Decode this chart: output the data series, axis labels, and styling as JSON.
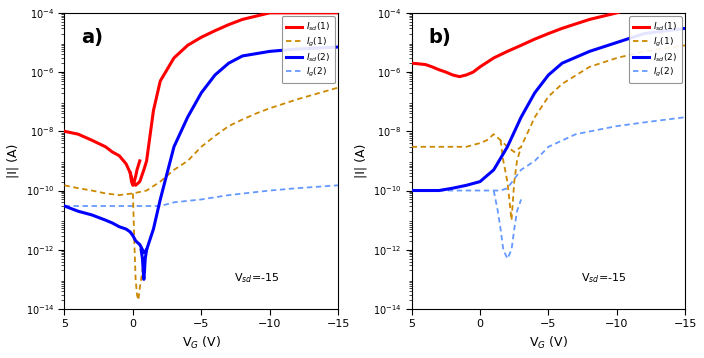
{
  "xlim": [
    5,
    -15
  ],
  "ylim": [
    1e-14,
    0.0001
  ],
  "xlabel": "V$_G$ (V)",
  "ylabel": "|I| (A)",
  "vsd_text": "V$_{sd}$=-15",
  "label_a": "a)",
  "label_b": "b)",
  "legend_labels": [
    "$I_{sd}$(1)",
    "$I_g$(1)",
    "$I_{sd}$(2)",
    "$I_g$(2)"
  ],
  "background": "white",
  "panel_a": {
    "Isd1": {
      "vg": [
        5,
        4,
        3,
        2,
        1.5,
        1,
        0.5,
        0.2,
        0,
        -0.2,
        -0.5,
        -0.8,
        -1.0,
        -1.5,
        -2,
        -3,
        -4,
        -5,
        -6,
        -7,
        -8,
        -10,
        -12,
        -15
      ],
      "I": [
        1e-08,
        8e-09,
        5e-09,
        3e-09,
        2e-09,
        1.5e-09,
        8e-10,
        4e-10,
        2e-10,
        1.5e-10,
        2e-10,
        5e-10,
        1e-09,
        5e-08,
        5e-07,
        3e-06,
        8e-06,
        1.5e-05,
        2.5e-05,
        4e-05,
        6e-05,
        0.0001,
        0.0001,
        0.0001
      ]
    },
    "Ig1": {
      "vg": [
        5,
        4,
        3,
        2,
        1,
        0,
        -1,
        -2,
        -3,
        -4,
        -5,
        -6,
        -7,
        -8,
        -9,
        -10,
        -12,
        -15
      ],
      "I": [
        1.5e-10,
        1.2e-10,
        1e-10,
        8e-11,
        7e-11,
        8e-11,
        1e-10,
        2e-10,
        5e-10,
        1e-09,
        3e-09,
        7e-09,
        1.5e-08,
        2.5e-08,
        4e-08,
        6e-08,
        1.2e-07,
        3e-07
      ]
    },
    "Isd2": {
      "vg": [
        5,
        4,
        3,
        2,
        1.5,
        1,
        0.5,
        0.2,
        0,
        -0.2,
        -0.5,
        -0.7,
        -0.8,
        -1.0,
        -1.5,
        -2,
        -3,
        -4,
        -5,
        -6,
        -7,
        -8,
        -10,
        -12,
        -15
      ],
      "I": [
        3e-11,
        2e-11,
        1.5e-11,
        1e-11,
        8e-12,
        6e-12,
        5e-12,
        4e-12,
        3e-12,
        2e-12,
        1.5e-12,
        1e-12,
        8e-13,
        1e-12,
        5e-12,
        5e-11,
        3e-09,
        3e-08,
        2e-07,
        8e-07,
        2e-06,
        3.5e-06,
        5e-06,
        6e-06,
        7e-06
      ]
    },
    "Ig2": {
      "vg": [
        5,
        3,
        1,
        0,
        -1,
        -2,
        -3,
        -5,
        -7,
        -10,
        -12,
        -15
      ],
      "I": [
        3e-11,
        3e-11,
        3e-11,
        3e-11,
        3e-11,
        3e-11,
        4e-11,
        5e-11,
        7e-11,
        1e-10,
        1.2e-10,
        1.5e-10
      ]
    },
    "Isd1_dip": {
      "vg": [
        0.2,
        0.1,
        0,
        -0.1,
        -0.2,
        -0.3,
        -0.5
      ],
      "I": [
        4e-10,
        2e-10,
        1.5e-10,
        2e-10,
        3e-10,
        5e-10,
        1e-09
      ]
    },
    "Ig1_dip": {
      "vg": [
        0,
        -0.1,
        -0.2,
        -0.3,
        -0.4,
        -0.5,
        -0.7,
        -1.0
      ],
      "I": [
        8e-11,
        2e-12,
        1e-13,
        3e-14,
        2e-14,
        5e-14,
        2e-13,
        1e-12
      ]
    },
    "Isd2_dip": {
      "vg": [
        -0.6,
        -0.7,
        -0.75,
        -0.8,
        -0.85,
        -0.9,
        -1.0
      ],
      "I": [
        1e-12,
        5e-13,
        2e-13,
        1e-13,
        2e-13,
        5e-13,
        1e-12
      ]
    }
  },
  "panel_b": {
    "Isd1": {
      "vg": [
        5,
        4,
        3.5,
        3,
        2.5,
        2,
        1.5,
        1,
        0.5,
        0,
        -1,
        -2,
        -3,
        -4,
        -5,
        -6,
        -8,
        -10,
        -12,
        -15
      ],
      "I": [
        2e-06,
        1.8e-06,
        1.5e-06,
        1.2e-06,
        1e-06,
        8e-07,
        7e-07,
        8e-07,
        1e-06,
        1.5e-06,
        3e-06,
        5e-06,
        8e-06,
        1.3e-05,
        2e-05,
        3e-05,
        6e-05,
        0.0001,
        0.0002,
        0.0004
      ]
    },
    "Ig1": {
      "vg": [
        5,
        4,
        3,
        2,
        1,
        0,
        -0.5,
        -1,
        -1.5,
        -2,
        -2.5,
        -3,
        -4,
        -5,
        -6,
        -8,
        -10,
        -12,
        -15
      ],
      "I": [
        3e-09,
        3e-09,
        3e-09,
        3e-09,
        3e-09,
        4e-09,
        5e-09,
        8e-09,
        5e-09,
        3e-09,
        2e-09,
        3e-09,
        3e-08,
        1.5e-07,
        4e-07,
        1.5e-06,
        3e-06,
        5e-06,
        8e-06
      ]
    },
    "Isd2": {
      "vg": [
        5,
        4,
        3,
        2,
        1,
        0,
        -1,
        -2,
        -3,
        -4,
        -5,
        -6,
        -8,
        -10,
        -12,
        -15
      ],
      "I": [
        1e-10,
        1e-10,
        1e-10,
        1.2e-10,
        1.5e-10,
        2e-10,
        5e-10,
        3e-09,
        3e-08,
        2e-07,
        8e-07,
        2e-06,
        5e-06,
        1e-05,
        2e-05,
        3e-05
      ]
    },
    "Ig2": {
      "vg": [
        5,
        3,
        1,
        0,
        -0.5,
        -1,
        -1.5,
        -2,
        -3,
        -4,
        -5,
        -7,
        -10,
        -12,
        -15
      ],
      "I": [
        1e-10,
        1e-10,
        1e-10,
        1e-10,
        1e-10,
        1e-10,
        1e-10,
        1.2e-10,
        5e-10,
        1e-09,
        3e-09,
        8e-09,
        1.5e-08,
        2e-08,
        3e-08
      ]
    },
    "Ig1_dip": {
      "vg": [
        -1.5,
        -1.7,
        -2,
        -2.3,
        -2.5,
        -2.7,
        -3.0
      ],
      "I": [
        5e-09,
        1e-09,
        2e-10,
        1e-11,
        2e-10,
        1e-09,
        3e-09
      ]
    },
    "Ig2_dip": {
      "vg": [
        -1,
        -1.3,
        -1.5,
        -1.7,
        -2,
        -2.3,
        -2.5,
        -2.7,
        -3.0
      ],
      "I": [
        1e-10,
        2e-11,
        5e-12,
        1e-12,
        5e-13,
        1e-12,
        5e-12,
        2e-11,
        5e-11
      ]
    }
  }
}
